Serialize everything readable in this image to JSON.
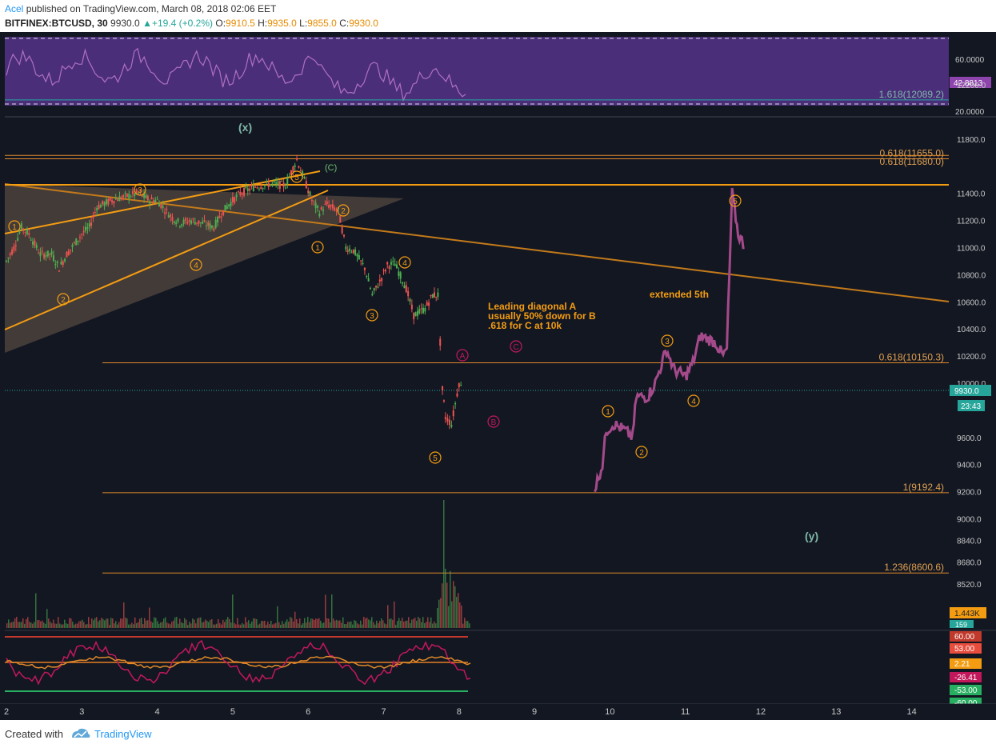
{
  "header": {
    "author": "Acel",
    "published": "published on TradingView.com, March 08, 2018 02:06 EET",
    "symbol": "BITFINEX:BTCUSD, 30",
    "last": "9930.0",
    "change": "+19.4 (+0.2%)",
    "o_label": "O:",
    "o_val": "9910.5",
    "h_label": "H:",
    "h_val": "9935.0",
    "l_label": "L:",
    "l_val": "9855.0",
    "c_label": "C:",
    "c_val": "9930.0"
  },
  "footer": {
    "created": "Created with",
    "brand": "TradingView"
  },
  "colors": {
    "bg": "#131722",
    "up": "#4caf50",
    "down": "#ef5350",
    "orange": "#f39c12",
    "rsi_bg": "#4a2e7a",
    "wave": "#a44a8a"
  },
  "chart_data": {
    "type": "candlestick",
    "symbol": "BITFINEX:BTCUSD",
    "interval": "30",
    "x_ticks": [
      "2",
      "3",
      "4",
      "5",
      "6",
      "7",
      "8",
      "9",
      "10",
      "11",
      "12",
      "13",
      "14"
    ],
    "price_ticks": [
      "12200.0",
      "11800.0",
      "11400.0",
      "11200.0",
      "11000.0",
      "10800.0",
      "10600.0",
      "10400.0",
      "10200.0",
      "10000.0",
      "9600.0",
      "9400.0",
      "9200.0",
      "9000.0",
      "8840.0",
      "8680.0",
      "8520.0"
    ],
    "ylim": [
      8350,
      12300
    ],
    "rsi_ticks": [
      "60.0000",
      "20.0000"
    ],
    "rsi_value": "42.8813",
    "price_label": "9930.0",
    "countdown": "23:43",
    "volume_label": "1.443K",
    "volume_small": "159",
    "osc_labels": [
      "60.00",
      "53.00",
      "2.21",
      "-26.41",
      "-53.00",
      "-60.00"
    ],
    "fib_levels": [
      {
        "label": "1.618(12089.2)",
        "value": 12089.2
      },
      {
        "label": "0.618(11655.0)",
        "value": 11655.0
      },
      {
        "label": "0.618(11680.0)",
        "value": 11680.0
      },
      {
        "label": "0.618(10150.3)",
        "value": 10150.3
      },
      {
        "label": "1(9192.4)",
        "value": 9192.4
      },
      {
        "label": "1.236(8600.6)",
        "value": 8600.6
      }
    ],
    "wave_labels": {
      "x": "(x)",
      "y": "(y)",
      "C": "(C)",
      "A": "A",
      "B": "B",
      "Cc": "C",
      "n1": "1",
      "n2": "2",
      "n3": "3",
      "n4": "4",
      "n5": "5"
    },
    "annotations": {
      "diagonal_line1": "Leading diagonal A",
      "diagonal_line2": "usually 50% down for B",
      "diagonal_line3": ".618 for C at 10k",
      "extended": "extended 5th"
    },
    "price_path_hist": [
      [
        2.0,
        10900
      ],
      [
        2.1,
        11000
      ],
      [
        2.2,
        11150
      ],
      [
        2.3,
        11100
      ],
      [
        2.45,
        10950
      ],
      [
        2.6,
        10950
      ],
      [
        2.7,
        10850
      ],
      [
        2.8,
        10950
      ],
      [
        3.0,
        11100
      ],
      [
        3.1,
        11150
      ],
      [
        3.2,
        11300
      ],
      [
        3.4,
        11350
      ],
      [
        3.6,
        11380
      ],
      [
        3.75,
        11400
      ],
      [
        3.9,
        11350
      ],
      [
        4.0,
        11350
      ],
      [
        4.1,
        11280
      ],
      [
        4.2,
        11220
      ],
      [
        4.3,
        11180
      ],
      [
        4.45,
        11200
      ],
      [
        4.6,
        11180
      ],
      [
        4.75,
        11150
      ],
      [
        4.85,
        11250
      ],
      [
        4.95,
        11320
      ],
      [
        5.1,
        11400
      ],
      [
        5.3,
        11450
      ],
      [
        5.5,
        11470
      ],
      [
        5.7,
        11460
      ],
      [
        5.85,
        11650
      ],
      [
        5.95,
        11500
      ],
      [
        6.05,
        11350
      ],
      [
        6.15,
        11260
      ],
      [
        6.25,
        11320
      ],
      [
        6.4,
        11270
      ],
      [
        6.5,
        11000
      ],
      [
        6.6,
        10980
      ],
      [
        6.75,
        10850
      ],
      [
        6.85,
        10650
      ],
      [
        6.95,
        10750
      ],
      [
        7.05,
        10870
      ],
      [
        7.15,
        10880
      ],
      [
        7.3,
        10700
      ],
      [
        7.4,
        10500
      ],
      [
        7.55,
        10550
      ],
      [
        7.65,
        10650
      ],
      [
        7.72,
        10650
      ],
      [
        7.78,
        9950
      ],
      [
        7.82,
        9750
      ],
      [
        7.9,
        9700
      ],
      [
        8.0,
        10000
      ],
      [
        8.05,
        9950
      ]
    ],
    "price_path_proj": [
      [
        9.8,
        9220
      ],
      [
        9.9,
        9400
      ],
      [
        9.95,
        9650
      ],
      [
        10.05,
        9700
      ],
      [
        10.2,
        9650
      ],
      [
        10.3,
        9600
      ],
      [
        10.35,
        9900
      ],
      [
        10.5,
        9900
      ],
      [
        10.6,
        10000
      ],
      [
        10.75,
        10250
      ],
      [
        10.85,
        10100
      ],
      [
        11.0,
        10050
      ],
      [
        11.1,
        10150
      ],
      [
        11.2,
        10350
      ],
      [
        11.4,
        10300
      ],
      [
        11.5,
        10200
      ],
      [
        11.55,
        10250
      ],
      [
        11.62,
        11400
      ],
      [
        11.7,
        11100
      ],
      [
        11.8,
        11000
      ]
    ]
  }
}
